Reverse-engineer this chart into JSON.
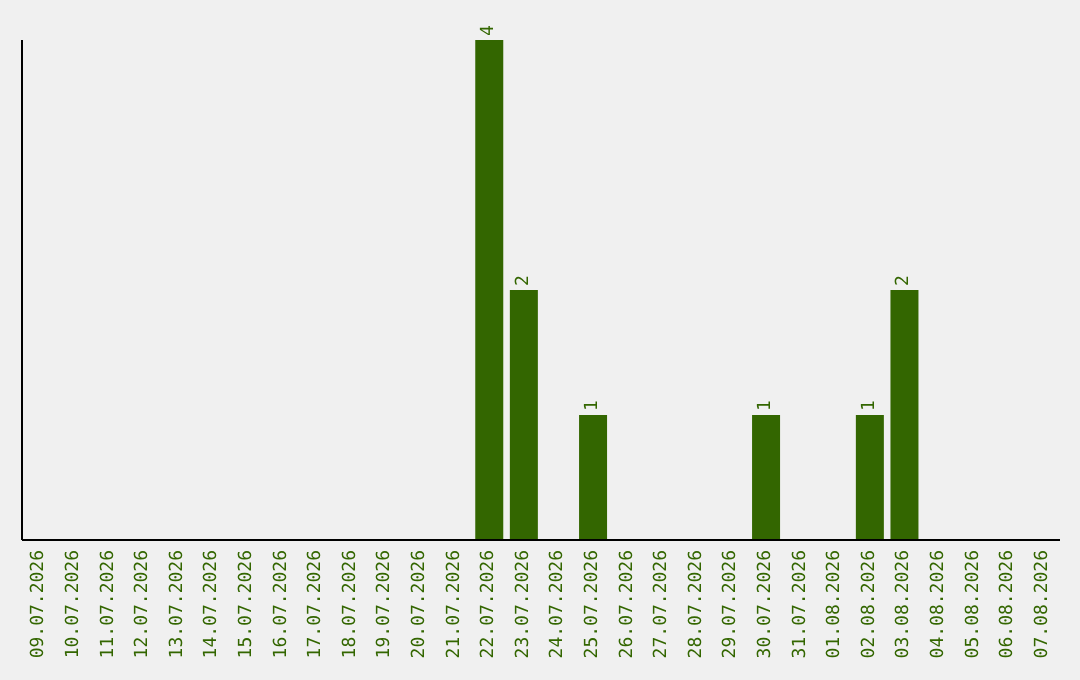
{
  "chart_data": {
    "type": "bar",
    "categories": [
      "09.07.2026",
      "10.07.2026",
      "11.07.2026",
      "12.07.2026",
      "13.07.2026",
      "14.07.2026",
      "15.07.2026",
      "16.07.2026",
      "17.07.2026",
      "18.07.2026",
      "19.07.2026",
      "20.07.2026",
      "21.07.2026",
      "22.07.2026",
      "23.07.2026",
      "24.07.2026",
      "25.07.2026",
      "26.07.2026",
      "27.07.2026",
      "28.07.2026",
      "29.07.2026",
      "30.07.2026",
      "31.07.2026",
      "01.08.2026",
      "02.08.2026",
      "03.08.2026",
      "04.08.2026",
      "05.08.2026",
      "06.08.2026",
      "07.08.2026"
    ],
    "values": [
      null,
      null,
      null,
      null,
      null,
      null,
      null,
      null,
      null,
      null,
      null,
      null,
      null,
      4,
      2,
      null,
      1,
      null,
      null,
      null,
      null,
      1,
      null,
      null,
      1,
      2,
      null,
      null,
      null,
      null
    ],
    "data_labels": true,
    "color": "#336600"
  }
}
